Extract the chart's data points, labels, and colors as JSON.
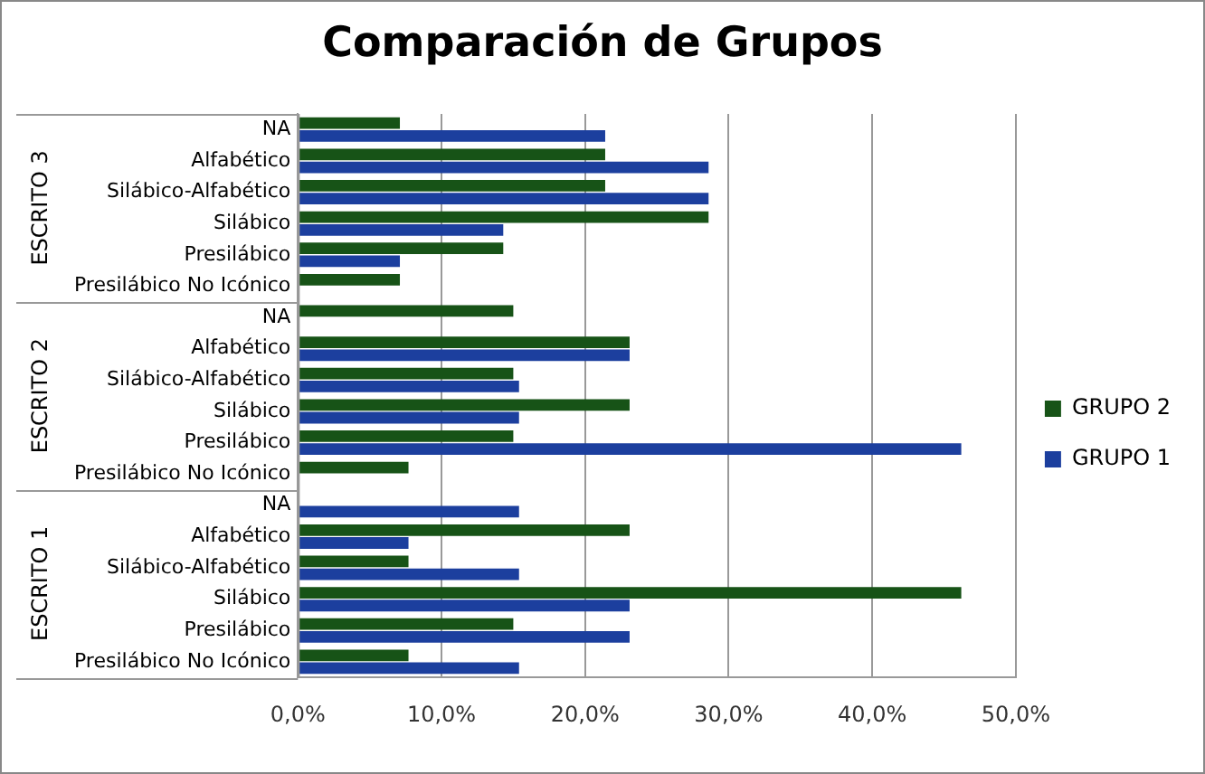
{
  "chart_data": {
    "type": "bar",
    "orientation": "horizontal",
    "title": "Comparación de Grupos",
    "categories": [
      "NA",
      "Alfabético",
      "Silábico-Alfabético",
      "Silábico",
      "Presilábico",
      "Presilábico No Icónico",
      "NA",
      "Alfabético",
      "Silábico-Alfabético",
      "Silábico",
      "Presilábico",
      "Presilábico No Icónico",
      "NA",
      "Alfabético",
      "Silábico-Alfabético",
      "Silábico",
      "Presilábico",
      "Presilábico No Icónico"
    ],
    "series": [
      {
        "name": "GRUPO 2",
        "color": "#175317",
        "values": [
          7.1,
          21.4,
          21.4,
          28.6,
          14.3,
          7.1,
          15.0,
          23.1,
          15.0,
          23.1,
          15.0,
          7.7,
          0,
          23.1,
          7.7,
          46.2,
          15.0,
          7.7
        ]
      },
      {
        "name": "GRUPO 1",
        "color": "#1c3f9e",
        "values": [
          21.4,
          28.6,
          28.6,
          14.3,
          7.1,
          0,
          0,
          23.1,
          15.4,
          15.4,
          46.2,
          0,
          15.4,
          7.7,
          15.4,
          23.1,
          23.1,
          15.4
        ]
      }
    ],
    "annotations": [
      "ESCRITO 3",
      "ESCRITO 2",
      "ESCRITO 1"
    ],
    "xlim": [
      0,
      50
    ],
    "xticks": [
      {
        "value": 0,
        "label": "0,0%"
      },
      {
        "value": 10,
        "label": "10,0%"
      },
      {
        "value": 20,
        "label": "20,0%"
      },
      {
        "value": 30,
        "label": "30,0%"
      },
      {
        "value": 40,
        "label": "40,0%"
      },
      {
        "value": 50,
        "label": "50,0%"
      }
    ],
    "grid": "x",
    "legend": "right"
  }
}
